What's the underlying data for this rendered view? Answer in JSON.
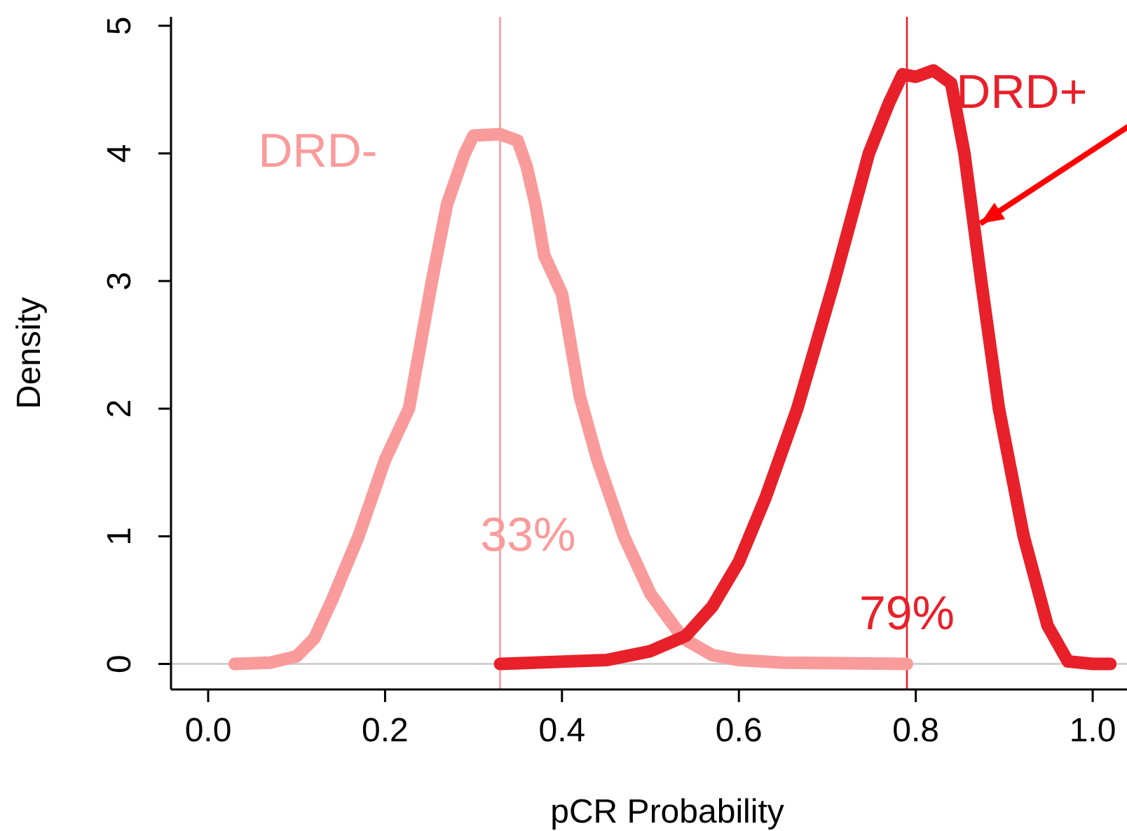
{
  "chart_data": {
    "type": "line",
    "xlabel": "pCR Probability",
    "ylabel": "Density",
    "xlim": [
      -0.042,
      1.08
    ],
    "ylim": [
      -0.2,
      5.07
    ],
    "xticks": [
      {
        "value": 0,
        "label": "0.0"
      },
      0.2,
      0.4,
      0.6,
      0.8,
      {
        "value": 1,
        "label": "1.0"
      }
    ],
    "yticks": [
      0,
      1,
      2,
      3,
      4,
      5
    ],
    "marker": "none",
    "line_style": "solid",
    "series": [
      {
        "name": "DRD-",
        "color": "#fa9b9b",
        "x": [
          0.03,
          0.07,
          0.1,
          0.12,
          0.14,
          0.17,
          0.2,
          0.227,
          0.253,
          0.27,
          0.29,
          0.3,
          0.33,
          0.35,
          0.36,
          0.37,
          0.38,
          0.4,
          0.42,
          0.44,
          0.47,
          0.5,
          0.537,
          0.57,
          0.6,
          0.65,
          0.79
        ],
        "values": [
          0,
          0.01,
          0.06,
          0.2,
          0.5,
          1.0,
          1.6,
          2.0,
          3.0,
          3.6,
          4.0,
          4.14,
          4.15,
          4.1,
          3.9,
          3.6,
          3.2,
          2.9,
          2.1,
          1.6,
          1.0,
          0.55,
          0.2,
          0.07,
          0.03,
          0.01,
          0
        ]
      },
      {
        "name": "DRD+",
        "color": "#e8202a",
        "x": [
          0.33,
          0.45,
          0.5,
          0.54,
          0.57,
          0.6,
          0.63,
          0.666,
          0.708,
          0.747,
          0.77,
          0.785,
          0.8,
          0.82,
          0.84,
          0.855,
          0.874,
          0.894,
          0.922,
          0.949,
          0.972,
          1.0,
          1.02
        ],
        "values": [
          0,
          0.03,
          0.1,
          0.22,
          0.45,
          0.8,
          1.3,
          2.0,
          3.0,
          4.0,
          4.4,
          4.62,
          4.6,
          4.65,
          4.55,
          4.0,
          3.0,
          2.0,
          1.0,
          0.3,
          0.02,
          0,
          0
        ]
      }
    ],
    "ref_lines": [
      {
        "axis": "y",
        "value": 0,
        "color": "#c8c8c8"
      },
      {
        "axis": "x",
        "value": 0.33,
        "color": "#fa9b9b",
        "label": "33%"
      },
      {
        "axis": "x",
        "value": 0.79,
        "color": "#e8202a",
        "label": "79%"
      }
    ]
  }
}
